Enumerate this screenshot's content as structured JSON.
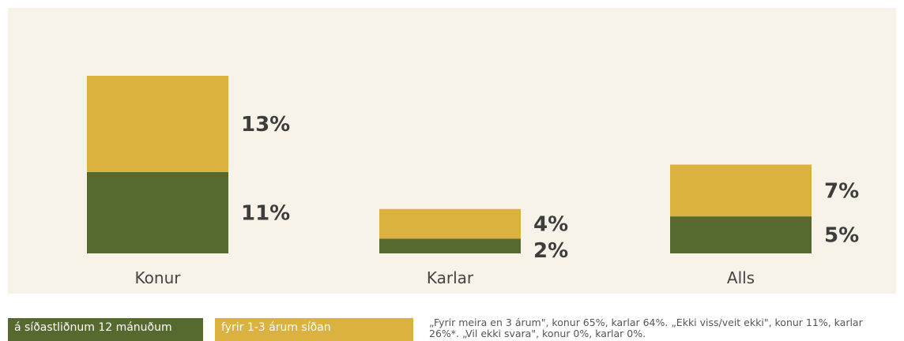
{
  "chart_data": {
    "type": "bar",
    "stacked": true,
    "categories": [
      "Konur",
      "Karlar",
      "Alls"
    ],
    "series": [
      {
        "name": "á síðastliðnum 12 mánuðum",
        "color": "#566a2f",
        "values": [
          11,
          2,
          5
        ],
        "value_labels": [
          "11%",
          "2%",
          "5%"
        ]
      },
      {
        "name": "fyrir 1-3 árum síðan",
        "color": "#dbb240",
        "values": [
          13,
          4,
          7
        ],
        "value_labels": [
          "13%",
          "4%",
          "7%"
        ]
      }
    ],
    "note": "„Fyrir meira en 3 árum\", konur 65%, karlar 64%. „Ekki viss/veit ekki\", konur 11%, karlar 26%*. „Vil ekki svara\", konur 0%, karlar 0%."
  }
}
